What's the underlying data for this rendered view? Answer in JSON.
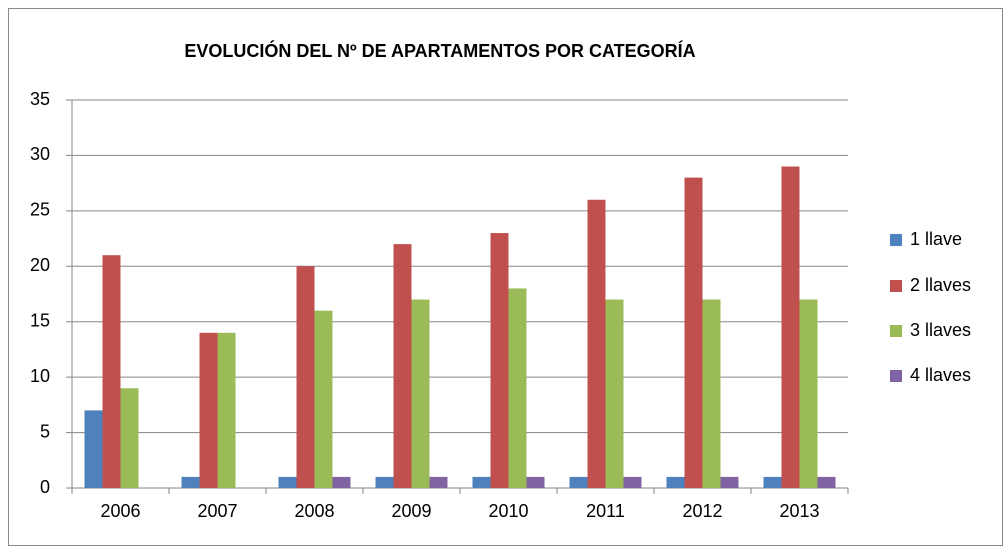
{
  "chart_data": {
    "type": "bar",
    "title": "EVOLUCIÓN DEL Nº DE APARTAMENTOS POR CATEGORÍA",
    "categories": [
      "2006",
      "2007",
      "2008",
      "2009",
      "2010",
      "2011",
      "2012",
      "2013"
    ],
    "series": [
      {
        "name": "1 llave",
        "color": "#4f81bd",
        "values": [
          7,
          1,
          1,
          1,
          1,
          1,
          1,
          1
        ]
      },
      {
        "name": "2 llaves",
        "color": "#c0504d",
        "values": [
          21,
          14,
          20,
          22,
          23,
          26,
          28,
          29
        ]
      },
      {
        "name": "3 llaves",
        "color": "#9bbb59",
        "values": [
          9,
          14,
          16,
          17,
          18,
          17,
          17,
          17
        ]
      },
      {
        "name": "4 llaves",
        "color": "#8064a2",
        "values": [
          0,
          0,
          1,
          1,
          1,
          1,
          1,
          1
        ]
      }
    ],
    "ylim": [
      0,
      35
    ],
    "yticks": [
      0,
      5,
      10,
      15,
      20,
      25,
      30,
      35
    ],
    "grid": true,
    "legend": "right"
  }
}
